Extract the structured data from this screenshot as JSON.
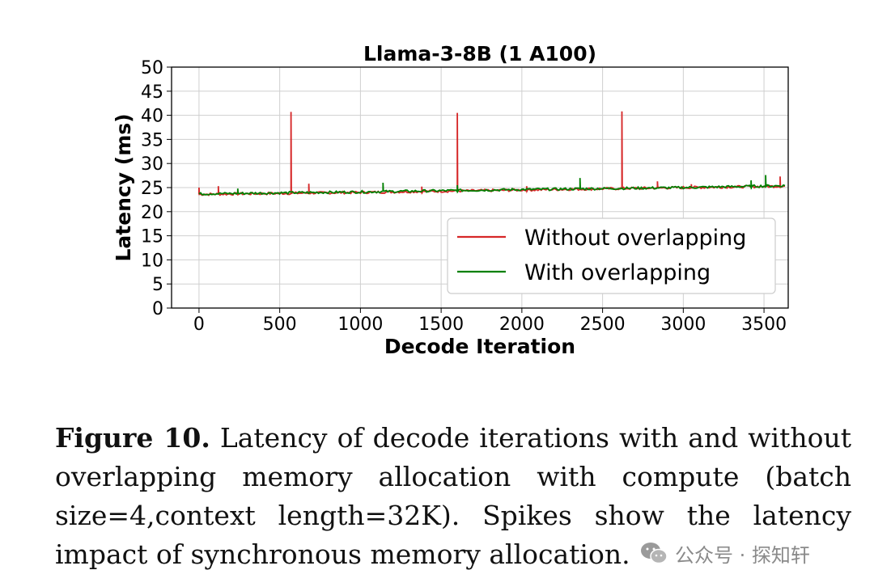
{
  "chart_data": {
    "type": "line",
    "title": "Llama-3-8B (1 A100)",
    "xlabel": "Decode Iteration",
    "ylabel": "Latency (ms)",
    "xlim": [
      -170,
      3650
    ],
    "ylim": [
      0,
      50
    ],
    "xticks": [
      0,
      500,
      1000,
      1500,
      2000,
      2500,
      3000,
      3500
    ],
    "yticks": [
      0,
      5,
      10,
      15,
      20,
      25,
      30,
      35,
      40,
      45,
      50
    ],
    "grid": true,
    "legend_position": "lower-right",
    "series": [
      {
        "name": "Without overlapping",
        "color": "#d62728",
        "x_range": [
          0,
          3630
        ],
        "baseline": [
          [
            0,
            23.6
          ],
          [
            1000,
            24.0
          ],
          [
            2000,
            24.5
          ],
          [
            3000,
            25.0
          ],
          [
            3630,
            25.3
          ]
        ],
        "spikes": [
          {
            "x": 0,
            "y": 25.0
          },
          {
            "x": 120,
            "y": 25.3
          },
          {
            "x": 570,
            "y": 40.7
          },
          {
            "x": 680,
            "y": 25.8
          },
          {
            "x": 1380,
            "y": 25.2
          },
          {
            "x": 1595,
            "y": 40.5
          },
          {
            "x": 2030,
            "y": 25.3
          },
          {
            "x": 2620,
            "y": 40.8
          },
          {
            "x": 2840,
            "y": 26.3
          },
          {
            "x": 3050,
            "y": 25.7
          },
          {
            "x": 3600,
            "y": 27.3
          }
        ]
      },
      {
        "name": "With overlapping",
        "color": "#008000",
        "x_range": [
          0,
          3630
        ],
        "baseline": [
          [
            0,
            23.7
          ],
          [
            1000,
            24.1
          ],
          [
            2000,
            24.6
          ],
          [
            3000,
            25.0
          ],
          [
            3630,
            25.4
          ]
        ],
        "spikes": [
          {
            "x": 240,
            "y": 24.8
          },
          {
            "x": 1140,
            "y": 26.0
          },
          {
            "x": 1600,
            "y": 25.5
          },
          {
            "x": 2360,
            "y": 27.0
          },
          {
            "x": 3420,
            "y": 26.5
          },
          {
            "x": 3510,
            "y": 27.6
          }
        ]
      }
    ]
  },
  "caption": {
    "label": "Figure 10.",
    "text": " Latency of decode iterations with and without overlapping memory allocation with compute (batch size=4,context length=32K). Spikes show the latency impact of synchronous memory allocation."
  },
  "watermark": {
    "icon": "wechat-icon",
    "text": "公众号 · 探知轩"
  }
}
